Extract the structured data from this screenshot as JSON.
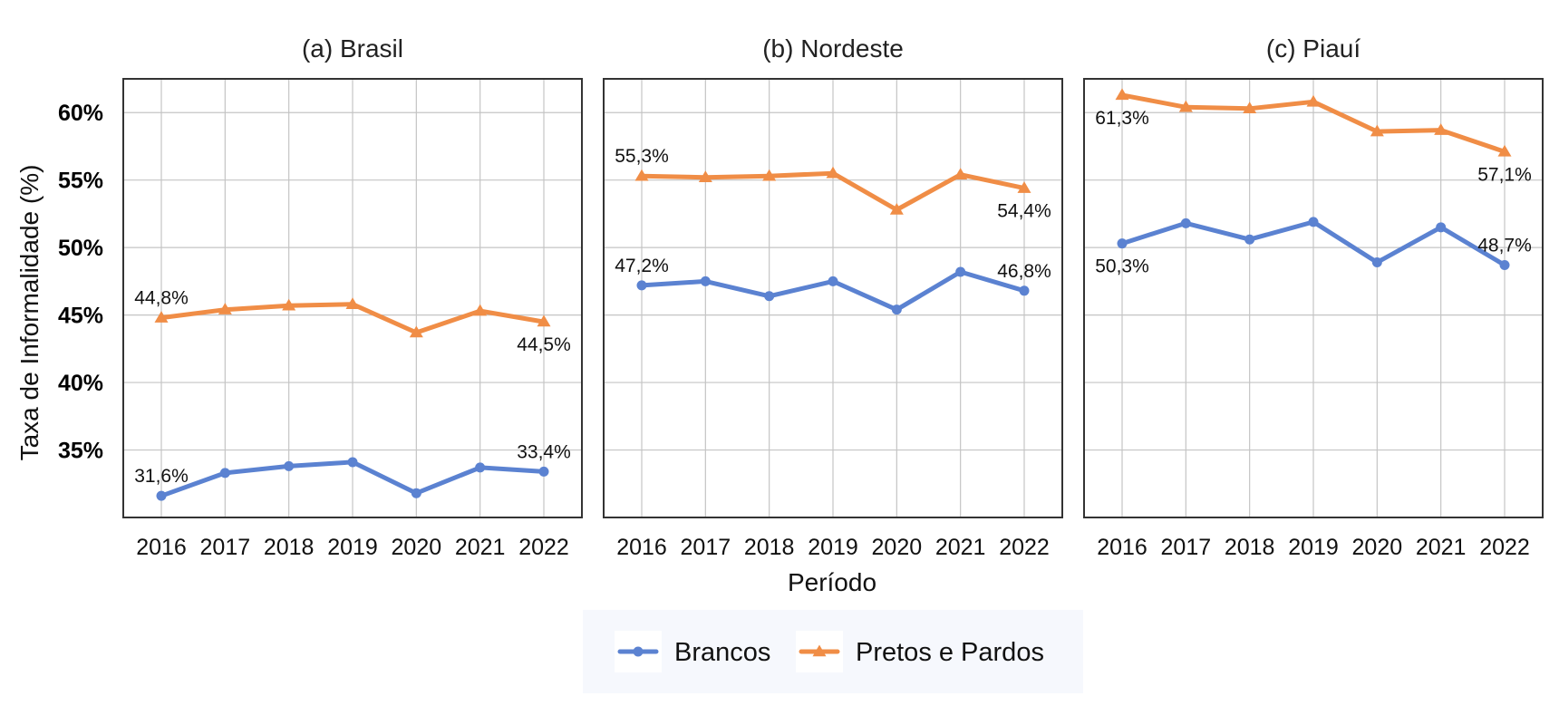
{
  "chart_data": {
    "type": "line",
    "xlabel": "Período",
    "ylabel": "Taxa de Informalidade (%)",
    "ylim": [
      30.0,
      62.5
    ],
    "y_ticks": [
      35,
      40,
      45,
      50,
      55,
      60
    ],
    "y_tick_labels": [
      "35%",
      "40%",
      "45%",
      "50%",
      "55%",
      "60%"
    ],
    "x_ticks": [
      2016,
      2017,
      2018,
      2019,
      2020,
      2021,
      2022
    ],
    "grid": true,
    "legend": {
      "position": "bottom",
      "entries": [
        {
          "name": "Brancos",
          "color": "#5b82d1",
          "marker": "circle"
        },
        {
          "name": "Pretos e Pardos",
          "color": "#f08d46",
          "marker": "triangle"
        }
      ]
    },
    "panels": [
      {
        "title": "(a) Brasil",
        "series": [
          {
            "name": "Brancos",
            "x": [
              2016,
              2017,
              2018,
              2019,
              2020,
              2021,
              2022
            ],
            "values": [
              31.6,
              33.3,
              33.8,
              34.1,
              31.8,
              33.7,
              33.4
            ],
            "labels": {
              "first": "31,6%",
              "last": "33,4%"
            }
          },
          {
            "name": "Pretos e Pardos",
            "x": [
              2016,
              2017,
              2018,
              2019,
              2020,
              2021,
              2022
            ],
            "values": [
              44.8,
              45.4,
              45.7,
              45.8,
              43.7,
              45.3,
              44.5
            ],
            "labels": {
              "first": "44,8%",
              "last": "44,5%"
            }
          }
        ]
      },
      {
        "title": "(b) Nordeste",
        "series": [
          {
            "name": "Brancos",
            "x": [
              2016,
              2017,
              2018,
              2019,
              2020,
              2021,
              2022
            ],
            "values": [
              47.2,
              47.5,
              46.4,
              47.5,
              45.4,
              48.2,
              46.8
            ],
            "labels": {
              "first": "47,2%",
              "last": "46,8%"
            }
          },
          {
            "name": "Pretos e Pardos",
            "x": [
              2016,
              2017,
              2018,
              2019,
              2020,
              2021,
              2022
            ],
            "values": [
              55.3,
              55.2,
              55.3,
              55.5,
              52.8,
              55.4,
              54.4
            ],
            "labels": {
              "first": "55,3%",
              "last": "54,4%"
            }
          }
        ]
      },
      {
        "title": "(c) Piauí",
        "series": [
          {
            "name": "Brancos",
            "x": [
              2016,
              2017,
              2018,
              2019,
              2020,
              2021,
              2022
            ],
            "values": [
              50.3,
              51.8,
              50.6,
              51.9,
              48.9,
              51.5,
              48.7
            ],
            "labels": {
              "first": "50,3%",
              "last": "48,7%"
            }
          },
          {
            "name": "Pretos e Pardos",
            "x": [
              2016,
              2017,
              2018,
              2019,
              2020,
              2021,
              2022
            ],
            "values": [
              61.3,
              60.4,
              60.3,
              60.8,
              58.6,
              58.7,
              57.1
            ],
            "labels": {
              "first": "61,3%",
              "last": "57,1%"
            }
          }
        ]
      }
    ]
  }
}
